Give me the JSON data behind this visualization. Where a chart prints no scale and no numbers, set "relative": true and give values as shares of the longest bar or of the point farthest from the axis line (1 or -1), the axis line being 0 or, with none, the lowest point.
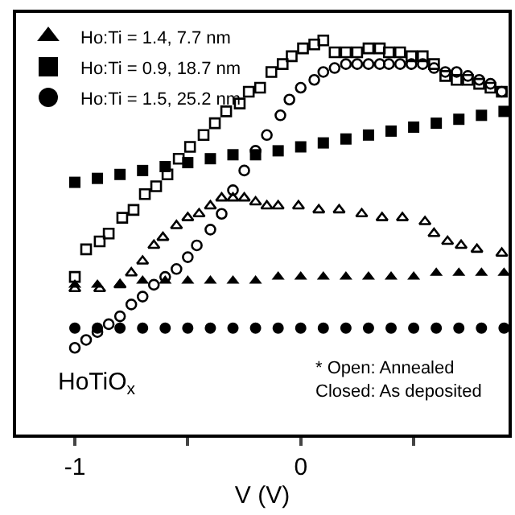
{
  "chart_data": {
    "type": "scatter",
    "relative": true,
    "xlabel": "V (V)",
    "xlim": [
      -1.26,
      0.92
    ],
    "xticks": [
      -1,
      {
        "value": -0.5,
        "label": null
      },
      0,
      {
        "value": 0.5,
        "label": null
      }
    ],
    "legend": "top left",
    "annotations": [
      "HoTiO$_{x}$",
      "* Open: Annealed\nClosed: As deposited"
    ],
    "series": [
      {
        "name": "Ho:Ti = 1.4, 7.7 nm",
        "color": "#000000",
        "marker": "triangle",
        "x": [
          -1,
          -0.9,
          -0.8,
          -0.7,
          -0.6,
          -0.5,
          -0.4,
          -0.3,
          -0.2,
          -0.1,
          0,
          0.1,
          0.2,
          0.3,
          0.4,
          0.5,
          0.6,
          0.7,
          0.8,
          0.9
        ],
        "values": [
          0.38,
          0.38,
          0.38,
          0.39,
          0.39,
          0.39,
          0.39,
          0.39,
          0.39,
          0.4,
          0.4,
          0.4,
          0.4,
          0.4,
          0.4,
          0.4,
          0.41,
          0.41,
          0.41,
          0.41
        ]
      },
      {
        "name": "Ho:Ti = 0.9, 18.7 nm",
        "color": "#000000",
        "marker": "square",
        "x": [
          -1,
          -0.9,
          -0.8,
          -0.7,
          -0.6,
          -0.5,
          -0.4,
          -0.3,
          -0.2,
          -0.1,
          0,
          0.1,
          0.2,
          0.3,
          0.4,
          0.5,
          0.6,
          0.7,
          0.8,
          0.9
        ],
        "values": [
          0.64,
          0.65,
          0.66,
          0.67,
          0.68,
          0.69,
          0.7,
          0.71,
          0.71,
          0.72,
          0.73,
          0.74,
          0.75,
          0.76,
          0.77,
          0.78,
          0.79,
          0.8,
          0.81,
          0.82
        ]
      },
      {
        "name": "Ho:Ti = 1.5, 25.2 nm",
        "color": "#000000",
        "marker": "circle",
        "x": [
          -1,
          -0.9,
          -0.8,
          -0.7,
          -0.6,
          -0.5,
          -0.4,
          -0.3,
          -0.2,
          -0.1,
          0,
          0.1,
          0.2,
          0.3,
          0.4,
          0.5,
          0.6,
          0.7,
          0.8,
          0.9
        ],
        "values": [
          0.27,
          0.27,
          0.27,
          0.27,
          0.27,
          0.27,
          0.27,
          0.27,
          0.27,
          0.27,
          0.27,
          0.27,
          0.27,
          0.27,
          0.27,
          0.27,
          0.27,
          0.27,
          0.27,
          0.27
        ]
      },
      {
        "color": "#000000",
        "marker": "triangle-open",
        "x": [
          -1,
          -0.89,
          -0.8,
          -0.75,
          -0.7,
          -0.65,
          -0.61,
          -0.55,
          -0.5,
          -0.45,
          -0.4,
          -0.35,
          -0.3,
          -0.25,
          -0.2,
          -0.15,
          -0.1,
          -0.01,
          0.08,
          0.17,
          0.27,
          0.36,
          0.45,
          0.55,
          0.59,
          0.65,
          0.71,
          0.78,
          0.89
        ],
        "values": [
          0.37,
          0.37,
          0.38,
          0.41,
          0.44,
          0.48,
          0.5,
          0.53,
          0.55,
          0.56,
          0.58,
          0.6,
          0.6,
          0.6,
          0.59,
          0.58,
          0.58,
          0.58,
          0.57,
          0.57,
          0.56,
          0.55,
          0.55,
          0.54,
          0.51,
          0.49,
          0.48,
          0.47,
          0.46
        ]
      },
      {
        "color": "#000000",
        "marker": "square-open",
        "x": [
          -1,
          -0.95,
          -0.89,
          -0.85,
          -0.79,
          -0.74,
          -0.69,
          -0.64,
          -0.59,
          -0.54,
          -0.49,
          -0.43,
          -0.38,
          -0.33,
          -0.27,
          -0.23,
          -0.18,
          -0.13,
          -0.08,
          -0.04,
          0.01,
          0.06,
          0.1,
          0.15,
          0.2,
          0.25,
          0.3,
          0.35,
          0.39,
          0.44,
          0.49,
          0.54,
          0.59,
          0.64,
          0.69,
          0.74,
          0.79,
          0.84,
          0.89
        ],
        "values": [
          0.4,
          0.47,
          0.49,
          0.51,
          0.55,
          0.57,
          0.61,
          0.63,
          0.66,
          0.7,
          0.73,
          0.76,
          0.79,
          0.82,
          0.84,
          0.87,
          0.88,
          0.92,
          0.94,
          0.96,
          0.98,
          0.99,
          1.0,
          0.97,
          0.97,
          0.97,
          0.98,
          0.98,
          0.97,
          0.97,
          0.96,
          0.96,
          0.94,
          0.91,
          0.9,
          0.9,
          0.89,
          0.88,
          0.87
        ]
      },
      {
        "color": "#000000",
        "marker": "circle-open",
        "x": [
          -1,
          -0.95,
          -0.9,
          -0.85,
          -0.8,
          -0.75,
          -0.7,
          -0.65,
          -0.6,
          -0.55,
          -0.5,
          -0.46,
          -0.4,
          -0.35,
          -0.3,
          -0.25,
          -0.2,
          -0.15,
          -0.09,
          -0.05,
          0,
          0.06,
          0.1,
          0.15,
          0.2,
          0.25,
          0.3,
          0.35,
          0.39,
          0.44,
          0.49,
          0.54,
          0.59,
          0.64,
          0.69,
          0.74,
          0.79,
          0.84,
          0.89
        ],
        "values": [
          0.22,
          0.24,
          0.26,
          0.28,
          0.3,
          0.33,
          0.35,
          0.38,
          0.4,
          0.42,
          0.45,
          0.48,
          0.52,
          0.56,
          0.62,
          0.67,
          0.72,
          0.76,
          0.81,
          0.85,
          0.88,
          0.9,
          0.92,
          0.93,
          0.94,
          0.94,
          0.94,
          0.94,
          0.94,
          0.94,
          0.94,
          0.94,
          0.93,
          0.92,
          0.92,
          0.91,
          0.9,
          0.89,
          0.87
        ]
      }
    ]
  }
}
